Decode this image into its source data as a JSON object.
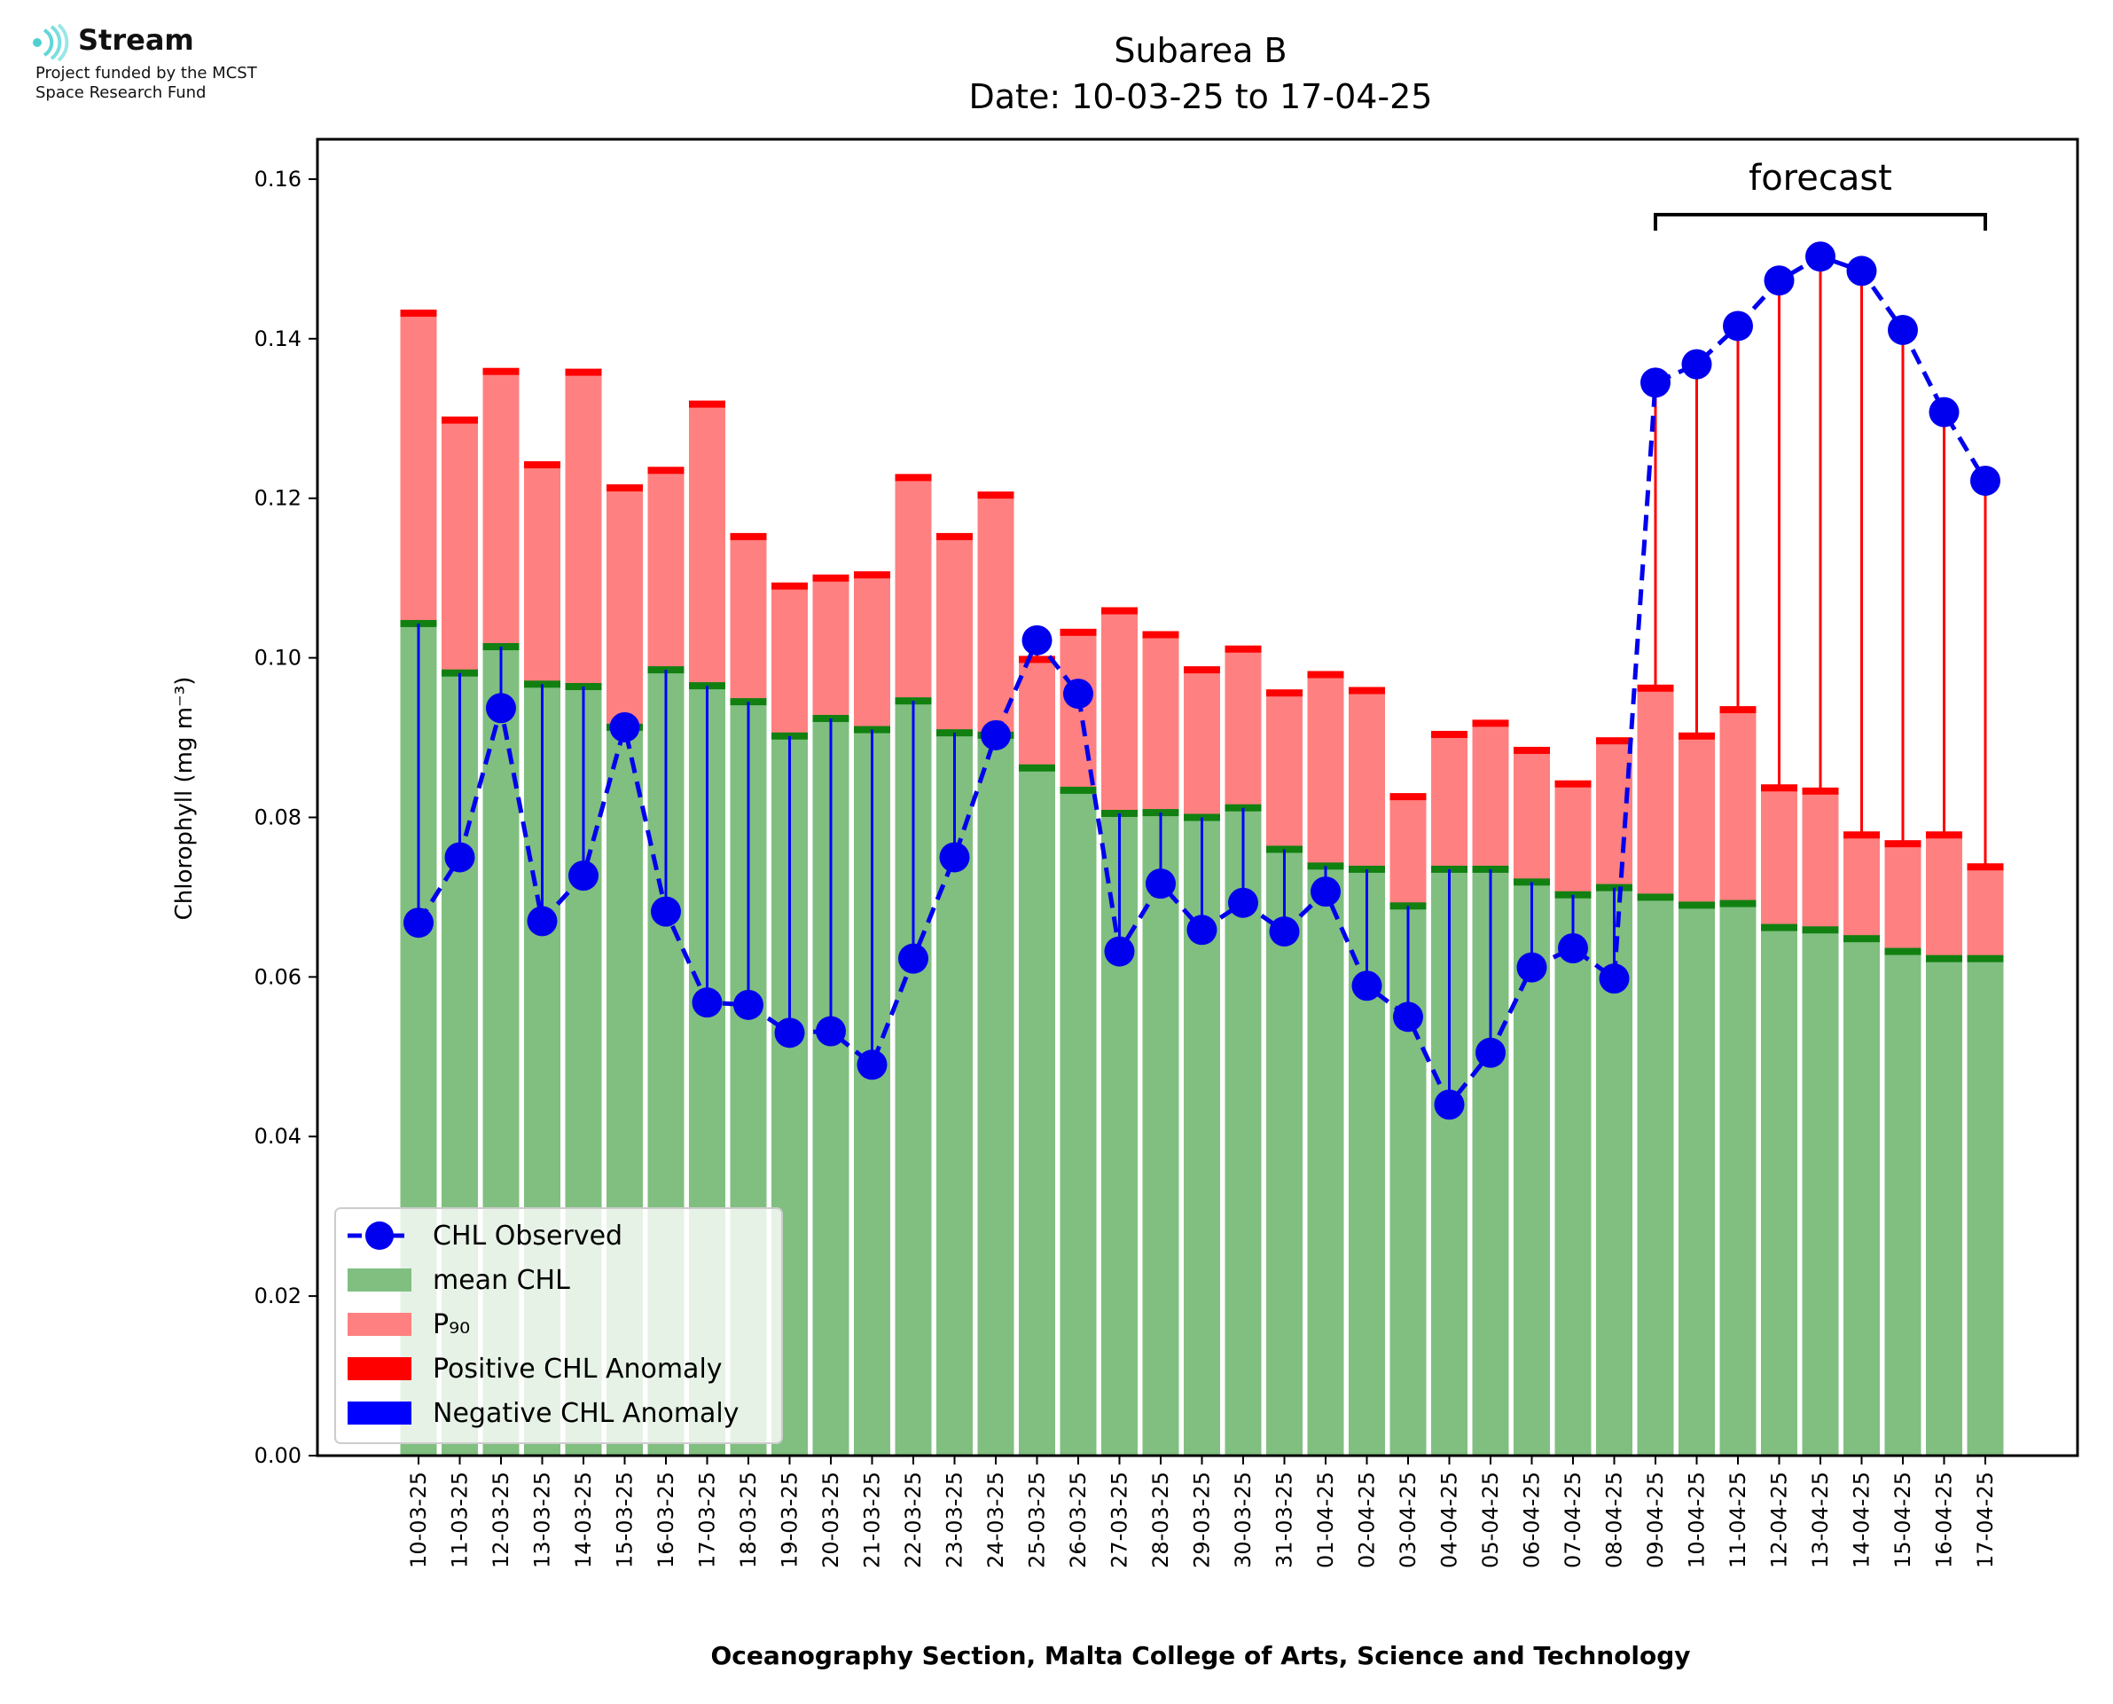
{
  "logo": {
    "name": "Stream",
    "line1": "Project funded by the MCST",
    "line2": "Space Research Fund"
  },
  "colors": {
    "mean": "#80bf80",
    "mean_cap": "#118011",
    "p90": "#ff8080",
    "p90_cap": "#ff0000",
    "observed": "#0000ee",
    "positive_anomaly": "#ff0000",
    "negative_anomaly": "#0000ff"
  },
  "chart_data": {
    "type": "bar",
    "title": "Subarea B",
    "subtitle": "Date: 10-03-25 to 17-04-25",
    "xlabel": "Oceanography Section, Malta College of Arts, Science and Technology",
    "ylabel": "Chlorophyll (mg m⁻³)",
    "ylim": [
      0,
      0.165
    ],
    "yticks": [
      "0.00",
      "0.02",
      "0.04",
      "0.06",
      "0.08",
      "0.10",
      "0.12",
      "0.14",
      "0.16"
    ],
    "grid": false,
    "legend_position": "lower-left",
    "forecast_label": "forecast",
    "forecast_range": [
      "09-04-25",
      "17-04-25"
    ],
    "categories": [
      "10-03-25",
      "11-03-25",
      "12-03-25",
      "13-03-25",
      "14-03-25",
      "15-03-25",
      "16-03-25",
      "17-03-25",
      "18-03-25",
      "19-03-25",
      "20-03-25",
      "21-03-25",
      "22-03-25",
      "23-03-25",
      "24-03-25",
      "25-03-25",
      "26-03-25",
      "27-03-25",
      "28-03-25",
      "29-03-25",
      "30-03-25",
      "31-03-25",
      "01-04-25",
      "02-04-25",
      "03-04-25",
      "04-04-25",
      "05-04-25",
      "06-04-25",
      "07-04-25",
      "08-04-25",
      "09-04-25",
      "10-04-25",
      "11-04-25",
      "12-04-25",
      "13-04-25",
      "14-04-25",
      "15-04-25",
      "16-04-25",
      "17-04-25"
    ],
    "series": [
      {
        "name": "CHL Observed",
        "kind": "line-marker",
        "values": [
          0.0668,
          0.075,
          0.0937,
          0.067,
          0.0727,
          0.0913,
          0.0682,
          0.0568,
          0.0565,
          0.053,
          0.0532,
          0.049,
          0.0623,
          0.075,
          0.0903,
          0.1022,
          0.0955,
          0.0632,
          0.0717,
          0.0659,
          0.0693,
          0.0657,
          0.0707,
          0.0589,
          0.055,
          0.044,
          0.0505,
          0.0612,
          0.0636,
          0.0598,
          0.1345,
          0.1368,
          0.1416,
          0.1473,
          0.1503,
          0.1485,
          0.1411,
          0.1308,
          0.1222
        ]
      },
      {
        "name": "mean CHL",
        "kind": "bar",
        "values": [
          0.1043,
          0.0981,
          0.1014,
          0.0967,
          0.0964,
          0.0913,
          0.0985,
          0.0965,
          0.0945,
          0.0902,
          0.0924,
          0.091,
          0.0946,
          0.0906,
          0.0903,
          0.0862,
          0.0834,
          0.0805,
          0.0806,
          0.08,
          0.0812,
          0.076,
          0.0739,
          0.0735,
          0.0689,
          0.0735,
          0.0735,
          0.0719,
          0.0703,
          0.0712,
          0.07,
          0.069,
          0.0692,
          0.0662,
          0.0659,
          0.0648,
          0.0632,
          0.0623,
          0.0623
        ]
      },
      {
        "name": "P₉₀",
        "kind": "bar",
        "values": [
          0.1432,
          0.1298,
          0.1359,
          0.1242,
          0.1358,
          0.1213,
          0.1235,
          0.1318,
          0.1152,
          0.109,
          0.11,
          0.1104,
          0.1226,
          0.1152,
          0.1204,
          0.0998,
          0.1032,
          0.1059,
          0.1029,
          0.0985,
          0.1011,
          0.0956,
          0.0979,
          0.0959,
          0.0826,
          0.0904,
          0.0918,
          0.0884,
          0.0842,
          0.0896,
          0.0962,
          0.0902,
          0.0935,
          0.0837,
          0.0833,
          0.0778,
          0.0767,
          0.0778,
          0.0738
        ]
      },
      {
        "name": "Positive CHL Anomaly",
        "kind": "legend-only"
      },
      {
        "name": "Negative CHL Anomaly",
        "kind": "legend-only"
      }
    ]
  }
}
